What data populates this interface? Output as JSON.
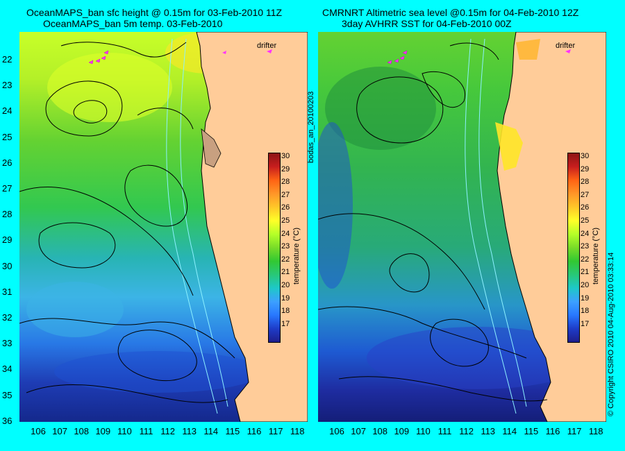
{
  "left_panel": {
    "title_line1": "OceanMAPS_ban sfc height @ 0.15m for 03-Feb-2010 11Z",
    "title_line2": "OceanMAPS_ban 5m temp. 03-Feb-2010"
  },
  "right_panel": {
    "title_line1": "CMRNRT Altimetric sea level  @0.15m  for 04-Feb-2010 12Z",
    "title_line2": "3day AVHRR SST for 04-Feb-2010 00Z"
  },
  "latitude_labels": [
    "22",
    "23",
    "24",
    "25",
    "26",
    "27",
    "28",
    "29",
    "30",
    "31",
    "32",
    "33",
    "34",
    "35",
    "36"
  ],
  "longitude_labels": [
    "106",
    "107",
    "108",
    "109",
    "110",
    "111",
    "112",
    "113",
    "114",
    "115",
    "116",
    "117",
    "118"
  ],
  "colorbar": {
    "ticks": [
      "30",
      "29",
      "28",
      "27",
      "26",
      "25",
      "24",
      "23",
      "22",
      "21",
      "20",
      "19",
      "18",
      "17"
    ],
    "label": "temperature (°C)",
    "colors": [
      "#1e1e8c",
      "#1e3cc8",
      "#2878ff",
      "#3ca0ff",
      "#1ec8c8",
      "#28c878",
      "#32c832",
      "#78dc28",
      "#b4ff28",
      "#ffff28",
      "#ffc828",
      "#ff9628",
      "#ff6414",
      "#c81e1e",
      "#8c1414"
    ]
  },
  "drifter_label": "drifter",
  "side_text_middle": "bodas_an_20100203",
  "side_text_right": "© Copyright CSIRO 2010     04-Aug-2010 03:33:14",
  "colors": {
    "background": "#00ffff",
    "land": "#ffcc99",
    "drifter_marker": "#ff33ff"
  }
}
